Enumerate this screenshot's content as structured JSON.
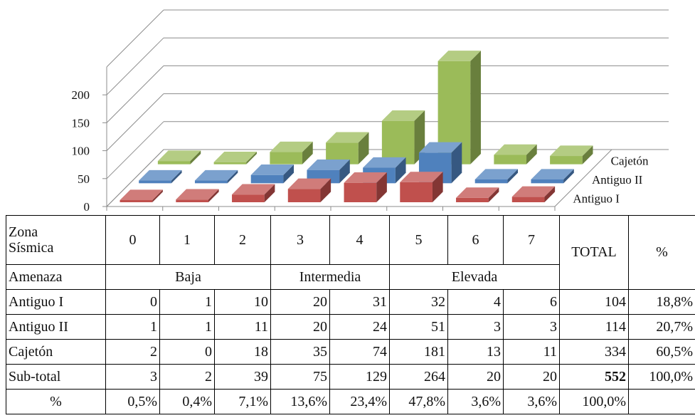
{
  "chart_data": {
    "type": "bar",
    "subtype": "3d-column",
    "categories": [
      "0",
      "1",
      "2",
      "3",
      "4",
      "5",
      "6",
      "7"
    ],
    "series": [
      {
        "name": "Antiguo I",
        "values": [
          0,
          1,
          10,
          20,
          31,
          32,
          4,
          6
        ],
        "color": "#c0504d"
      },
      {
        "name": "Antiguo II",
        "values": [
          1,
          1,
          11,
          20,
          24,
          51,
          3,
          3
        ],
        "color": "#4f81bd"
      },
      {
        "name": "Cajetón",
        "values": [
          2,
          0,
          18,
          35,
          74,
          181,
          13,
          11
        ],
        "color": "#9bbb59"
      }
    ],
    "y_ticks": [
      "0",
      "50",
      "100",
      "150",
      "200"
    ],
    "ylim": [
      0,
      250
    ],
    "grid": true,
    "legend": "right"
  },
  "table": {
    "header": {
      "zona_label": "Zona\nSísmica",
      "zones": [
        "0",
        "1",
        "2",
        "3",
        "4",
        "5",
        "6",
        "7"
      ],
      "total_label": "TOTAL",
      "pct_label": "%"
    },
    "amenaza": {
      "label": "Amenaza",
      "groups": [
        "Baja",
        "Intermedia",
        "Elevada"
      ]
    },
    "rows": [
      {
        "label": "Antiguo I",
        "values": [
          "0",
          "1",
          "10",
          "20",
          "31",
          "32",
          "4",
          "6"
        ],
        "total": "104",
        "pct": "18,8%"
      },
      {
        "label": "Antiguo II",
        "values": [
          "1",
          "1",
          "11",
          "20",
          "24",
          "51",
          "3",
          "3"
        ],
        "total": "114",
        "pct": "20,7%"
      },
      {
        "label": "Cajetón",
        "values": [
          "2",
          "0",
          "18",
          "35",
          "74",
          "181",
          "13",
          "11"
        ],
        "total": "334",
        "pct": "60,5%"
      },
      {
        "label": "Sub-total",
        "values": [
          "3",
          "2",
          "39",
          "75",
          "129",
          "264",
          "20",
          "20"
        ],
        "total": "552",
        "pct": "100,0%"
      }
    ],
    "pct_row": {
      "label": "%",
      "values": [
        "0,5%",
        "0,4%",
        "7,1%",
        "13,6%",
        "23,4%",
        "47,8%",
        "3,6%",
        "3,6%"
      ],
      "total": "100,0%",
      "pct": ""
    }
  }
}
